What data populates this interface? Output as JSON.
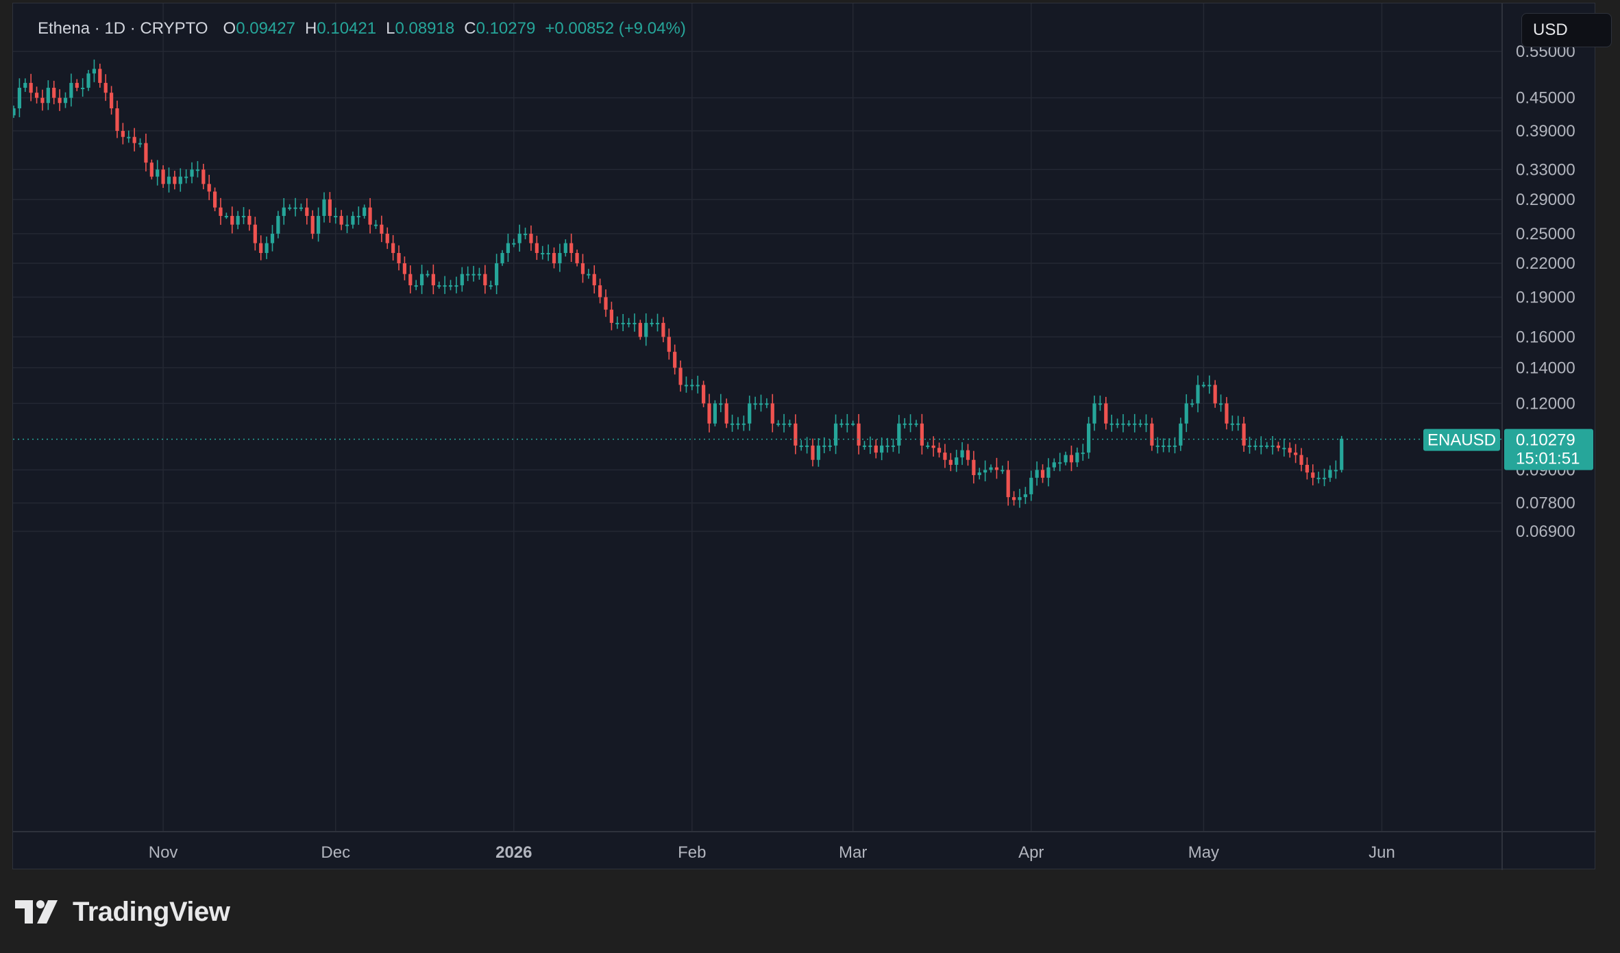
{
  "legend": {
    "symbol": "Ethena · 1D · CRYPTO",
    "open_label": "O",
    "open": "0.09427",
    "high_label": "H",
    "high": "0.10421",
    "low_label": "L",
    "low": "0.08918",
    "close_label": "C",
    "close": "0.10279",
    "change": "+0.00852 (+9.04%)"
  },
  "currency": "USD",
  "footer": {
    "brand": "TradingView",
    "logo_icon": "tradingview-logo-icon"
  },
  "colors": {
    "up": "#26a69a",
    "down": "#ef5350",
    "background": "#151924",
    "grid": "#242833"
  },
  "chart_data": {
    "type": "candlestick",
    "title": "Ethena · 1D · CRYPTO",
    "series_name": "ENAUSD",
    "scale": "log",
    "y_ticks": [
      "0.55000",
      "0.45000",
      "0.39000",
      "0.33000",
      "0.29000",
      "0.25000",
      "0.22000",
      "0.19000",
      "0.16000",
      "0.14000",
      "0.12000",
      "0.09000",
      "0.07800",
      "0.06900"
    ],
    "x_ticks": [
      {
        "label": "Nov",
        "day": 26
      },
      {
        "label": "Dec",
        "day": 56
      },
      {
        "label": "2026",
        "day": 87,
        "bold": true
      },
      {
        "label": "Feb",
        "day": 118
      },
      {
        "label": "Mar",
        "day": 146
      },
      {
        "label": "Apr",
        "day": 177
      },
      {
        "label": "May",
        "day": 207
      },
      {
        "label": "Jun",
        "day": 238
      }
    ],
    "last_price": {
      "label": "ENAUSD",
      "value": "0.10279",
      "countdown": "15:01:51"
    },
    "grid": true,
    "closes": [
      0.43,
      0.47,
      0.48,
      0.46,
      0.45,
      0.44,
      0.47,
      0.45,
      0.44,
      0.45,
      0.48,
      0.47,
      0.47,
      0.5,
      0.51,
      0.48,
      0.46,
      0.43,
      0.39,
      0.38,
      0.38,
      0.37,
      0.37,
      0.34,
      0.32,
      0.33,
      0.31,
      0.32,
      0.31,
      0.32,
      0.32,
      0.33,
      0.33,
      0.31,
      0.3,
      0.28,
      0.27,
      0.27,
      0.26,
      0.27,
      0.27,
      0.26,
      0.24,
      0.23,
      0.24,
      0.25,
      0.27,
      0.28,
      0.28,
      0.28,
      0.28,
      0.27,
      0.25,
      0.27,
      0.29,
      0.27,
      0.27,
      0.26,
      0.26,
      0.27,
      0.27,
      0.28,
      0.26,
      0.26,
      0.25,
      0.24,
      0.23,
      0.22,
      0.21,
      0.2,
      0.2,
      0.21,
      0.21,
      0.2,
      0.2,
      0.2,
      0.2,
      0.2,
      0.21,
      0.21,
      0.21,
      0.21,
      0.2,
      0.2,
      0.22,
      0.23,
      0.24,
      0.24,
      0.25,
      0.25,
      0.24,
      0.23,
      0.23,
      0.23,
      0.22,
      0.23,
      0.24,
      0.23,
      0.22,
      0.21,
      0.21,
      0.2,
      0.19,
      0.18,
      0.17,
      0.17,
      0.17,
      0.17,
      0.17,
      0.16,
      0.17,
      0.17,
      0.17,
      0.16,
      0.15,
      0.14,
      0.13,
      0.13,
      0.13,
      0.13,
      0.12,
      0.11,
      0.12,
      0.12,
      0.11,
      0.11,
      0.11,
      0.11,
      0.12,
      0.12,
      0.12,
      0.12,
      0.11,
      0.11,
      0.11,
      0.11,
      0.1,
      0.1,
      0.1,
      0.094,
      0.1,
      0.1,
      0.1,
      0.11,
      0.11,
      0.11,
      0.11,
      0.1,
      0.1,
      0.1,
      0.097,
      0.1,
      0.1,
      0.1,
      0.11,
      0.11,
      0.11,
      0.11,
      0.1,
      0.1,
      0.099,
      0.097,
      0.094,
      0.092,
      0.095,
      0.098,
      0.094,
      0.088,
      0.089,
      0.09,
      0.091,
      0.09,
      0.09,
      0.08,
      0.079,
      0.08,
      0.081,
      0.087,
      0.09,
      0.087,
      0.091,
      0.093,
      0.093,
      0.096,
      0.093,
      0.097,
      0.097,
      0.11,
      0.12,
      0.12,
      0.11,
      0.11,
      0.11,
      0.11,
      0.11,
      0.11,
      0.11,
      0.11,
      0.1,
      0.1,
      0.1,
      0.1,
      0.1,
      0.11,
      0.12,
      0.12,
      0.13,
      0.13,
      0.13,
      0.12,
      0.12,
      0.11,
      0.11,
      0.11,
      0.1,
      0.1,
      0.1,
      0.1,
      0.1,
      0.1,
      0.099,
      0.099,
      0.097,
      0.096,
      0.092,
      0.089,
      0.087,
      0.087,
      0.087,
      0.09,
      0.09,
      0.103
    ]
  }
}
